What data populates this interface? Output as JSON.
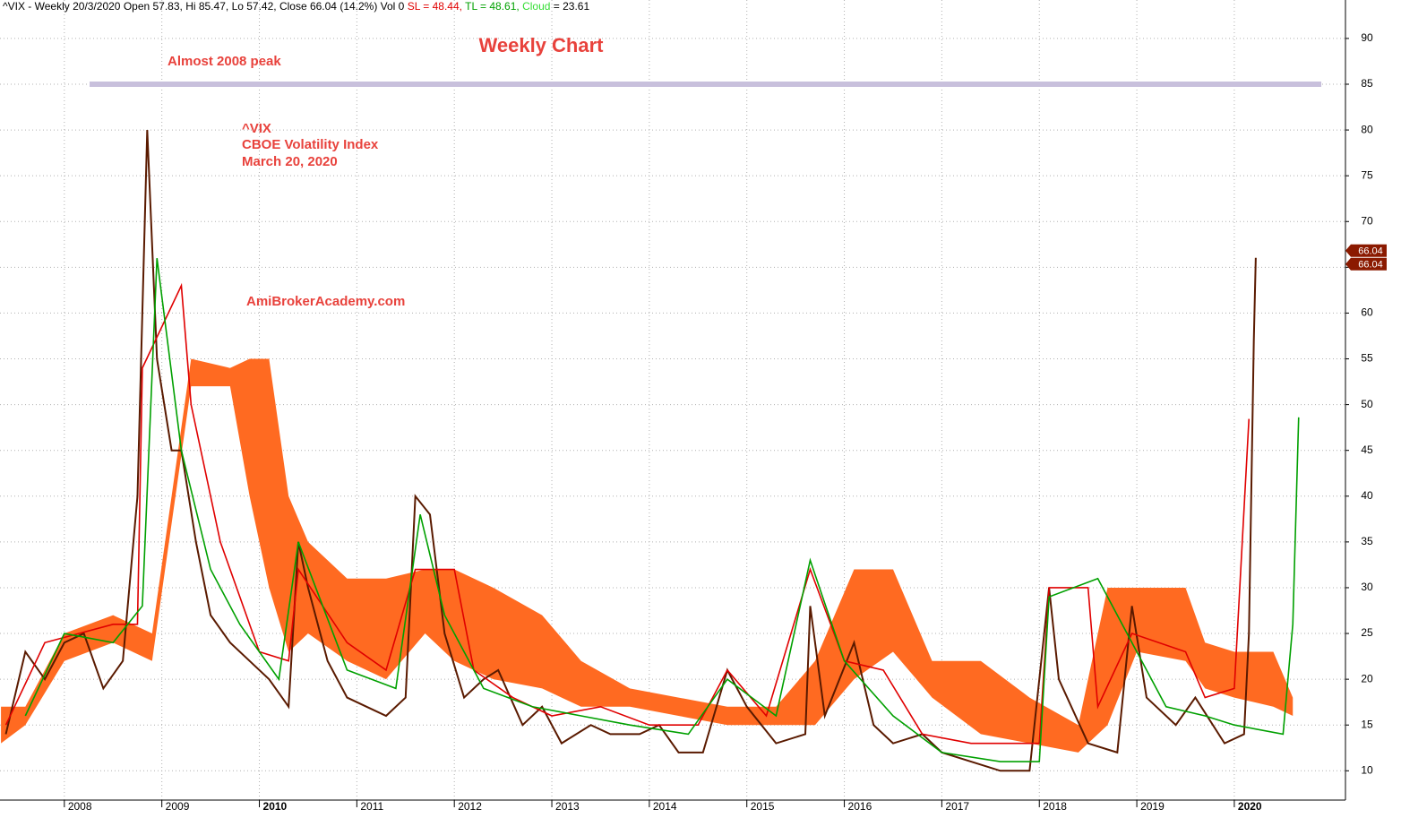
{
  "chart_data": {
    "type": "line",
    "header": {
      "prefix": "^VIX - Weekly 20/3/2020 Open 57.83, Hi 85.47, Lo 57.42, Close 66.04 (14.2%) Vol 0",
      "sl": "SL = 48.44,",
      "tl": "TL = 48.61,",
      "cloud": "Cloud",
      "cloud_value": "= 23.61"
    },
    "title": "Weekly Chart",
    "annotations": [
      "Almost 2008 peak",
      "^VIX",
      "CBOE Volatility Index",
      "March 20, 2020",
      "AmiBrokerAcademy.com"
    ],
    "reference_line": 85,
    "last_value": 66.04,
    "xlim": [
      2007.34,
      2021.14
    ],
    "xticks": [
      2008,
      2009,
      2010,
      2011,
      2012,
      2013,
      2014,
      2015,
      2016,
      2017,
      2018,
      2019,
      2020
    ],
    "ylim": [
      6.8,
      94.2
    ],
    "yticks": [
      10,
      15,
      20,
      25,
      30,
      35,
      40,
      45,
      50,
      55,
      60,
      65,
      70,
      75,
      80,
      85,
      90
    ],
    "grid": true,
    "series": [
      {
        "name": "^VIX",
        "color": "#5a1a00",
        "x": [
          2007.4,
          2007.6,
          2007.8,
          2008.0,
          2008.2,
          2008.4,
          2008.6,
          2008.75,
          2008.85,
          2008.95,
          2009.1,
          2009.2,
          2009.35,
          2009.5,
          2009.7,
          2009.9,
          2010.1,
          2010.3,
          2010.4,
          2010.5,
          2010.7,
          2010.9,
          2011.1,
          2011.3,
          2011.5,
          2011.6,
          2011.75,
          2011.9,
          2012.1,
          2012.3,
          2012.45,
          2012.7,
          2012.9,
          2013.1,
          2013.4,
          2013.6,
          2013.9,
          2014.1,
          2014.3,
          2014.55,
          2014.8,
          2015.0,
          2015.3,
          2015.6,
          2015.65,
          2015.8,
          2016.1,
          2016.3,
          2016.5,
          2016.8,
          2017.0,
          2017.3,
          2017.6,
          2017.9,
          2018.1,
          2018.2,
          2018.5,
          2018.8,
          2018.95,
          2019.1,
          2019.4,
          2019.6,
          2019.9,
          2020.1,
          2020.15,
          2020.2,
          2020.22
        ],
        "values": [
          14,
          23,
          20,
          24,
          25,
          19,
          22,
          40,
          80,
          55,
          45,
          45,
          35,
          27,
          24,
          22,
          20,
          17,
          35,
          30,
          22,
          18,
          17,
          16,
          18,
          40,
          38,
          25,
          18,
          20,
          21,
          15,
          17,
          13,
          15,
          14,
          14,
          15,
          12,
          12,
          21,
          17,
          13,
          14,
          28,
          16,
          24,
          15,
          13,
          14,
          12,
          11,
          10,
          10,
          30,
          20,
          13,
          12,
          28,
          18,
          15,
          18,
          13,
          14,
          25,
          57,
          66.04
        ]
      },
      {
        "name": "SL",
        "color": "#e00000",
        "x": [
          2007.4,
          2007.8,
          2008.5,
          2008.75,
          2008.8,
          2009.2,
          2009.3,
          2009.6,
          2010.0,
          2010.3,
          2010.4,
          2010.9,
          2011.3,
          2011.6,
          2012.0,
          2012.2,
          2012.6,
          2013.0,
          2013.5,
          2014.0,
          2014.5,
          2014.8,
          2015.2,
          2015.65,
          2016.0,
          2016.4,
          2016.8,
          2017.3,
          2018.0,
          2018.1,
          2018.5,
          2018.6,
          2018.95,
          2019.5,
          2019.7,
          2020.0,
          2020.15
        ],
        "values": [
          15,
          24,
          26,
          26,
          54,
          63,
          50,
          35,
          23,
          22,
          32,
          24,
          21,
          32,
          32,
          21,
          18,
          16,
          17,
          15,
          15,
          21,
          16,
          32,
          22,
          21,
          14,
          13,
          13,
          30,
          30,
          17,
          25,
          23,
          18,
          19,
          48.44
        ]
      },
      {
        "name": "TL",
        "color": "#00a000",
        "x": [
          2007.6,
          2008.0,
          2008.5,
          2008.8,
          2008.95,
          2009.2,
          2009.5,
          2009.8,
          2010.2,
          2010.4,
          2010.9,
          2011.4,
          2011.65,
          2011.9,
          2012.3,
          2012.8,
          2013.3,
          2013.8,
          2014.4,
          2014.8,
          2015.3,
          2015.65,
          2016.0,
          2016.5,
          2017.0,
          2017.6,
          2018.0,
          2018.1,
          2018.6,
          2018.95,
          2019.3,
          2019.7,
          2020.0,
          2020.5,
          2020.6,
          2020.66
        ],
        "values": [
          16,
          25,
          24,
          28,
          66,
          45,
          32,
          26,
          20,
          35,
          21,
          19,
          38,
          27,
          19,
          17,
          16,
          15,
          14,
          20,
          16,
          33,
          22,
          16,
          12,
          11,
          11,
          29,
          31,
          24,
          17,
          16,
          15,
          14,
          26,
          48.61
        ]
      }
    ],
    "cloud": {
      "name": "Cloud",
      "color": "#ff6a21",
      "x": [
        2007.35,
        2007.6,
        2008.0,
        2008.5,
        2008.9,
        2009.3,
        2009.7,
        2009.9,
        2010.1,
        2010.3,
        2010.5,
        2010.9,
        2011.3,
        2011.7,
        2012.0,
        2012.4,
        2012.9,
        2013.3,
        2013.8,
        2014.3,
        2014.8,
        2015.3,
        2015.7,
        2016.1,
        2016.5,
        2016.9,
        2017.4,
        2017.9,
        2018.4,
        2018.7,
        2019.0,
        2019.5,
        2019.7,
        2020.0,
        2020.4,
        2020.6
      ],
      "upper": [
        17,
        17,
        25,
        27,
        25,
        55,
        54,
        55,
        55,
        40,
        35,
        31,
        31,
        32,
        32,
        30,
        27,
        22,
        19,
        18,
        17,
        17,
        22,
        32,
        32,
        22,
        22,
        18,
        15,
        30,
        30,
        30,
        24,
        23,
        23,
        18
      ],
      "lower": [
        13,
        15,
        22,
        24,
        22,
        52,
        52,
        40,
        30,
        23,
        25,
        22,
        20,
        25,
        22,
        20,
        19,
        17,
        17,
        16,
        15,
        15,
        15,
        20,
        23,
        18,
        14,
        13,
        12,
        15,
        23,
        22,
        19,
        18,
        17,
        16
      ]
    }
  }
}
